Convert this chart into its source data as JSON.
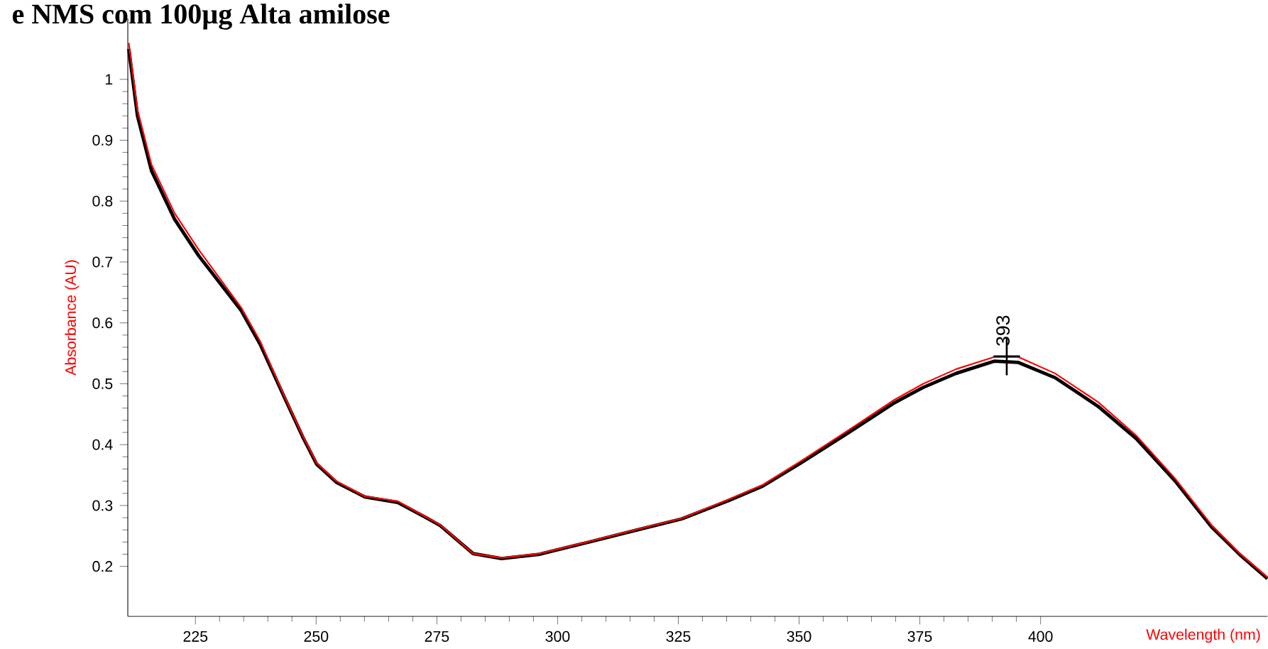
{
  "chart_data": {
    "type": "line",
    "title": "e NMS com 100µg Alta amilose",
    "xlabel": "Wavelength (nm)",
    "ylabel": "Absorbance (AU)",
    "xlim": [
      211,
      447
    ],
    "ylim": [
      0.118,
      1.1
    ],
    "xticks": [
      225,
      250,
      275,
      300,
      325,
      350,
      375,
      400
    ],
    "yticks": [
      0.2,
      0.3,
      0.4,
      0.5,
      0.6,
      0.7,
      0.8,
      0.9,
      1
    ],
    "grid": false,
    "marker": "none",
    "line_style": "solid",
    "annotations": [
      {
        "text": "393",
        "x": 393,
        "y": 0.545
      }
    ],
    "series": [
      {
        "color": "#000000",
        "x": [
          211.2,
          213,
          215.9,
          220.7,
          225.7,
          234.5,
          238.4,
          243.4,
          247.2,
          250.1,
          254.2,
          260.1,
          266.9,
          272.8,
          275.7,
          282.5,
          288.4,
          296.3,
          306,
          316,
          325.7,
          335.4,
          342.5,
          350.2,
          360.1,
          369.8,
          375.7,
          382.5,
          390.4,
          395.4,
          403,
          411.9,
          419.8,
          427.8,
          435.4,
          441.3,
          447
        ],
        "values": [
          1.05,
          0.94,
          0.85,
          0.77,
          0.71,
          0.62,
          0.565,
          0.478,
          0.413,
          0.368,
          0.338,
          0.314,
          0.305,
          0.28,
          0.267,
          0.221,
          0.213,
          0.22,
          0.239,
          0.259,
          0.278,
          0.308,
          0.332,
          0.369,
          0.419,
          0.469,
          0.494,
          0.517,
          0.537,
          0.535,
          0.51,
          0.463,
          0.41,
          0.341,
          0.265,
          0.219,
          0.18
        ]
      },
      {
        "color": "#ff0000",
        "x": [
          211.2,
          213,
          215.9,
          220.7,
          225.7,
          234.5,
          238.4,
          243.4,
          247.2,
          250.1,
          254.2,
          260.1,
          266.9,
          272.8,
          275.7,
          282.5,
          288.4,
          296.3,
          306,
          316,
          325.7,
          335.4,
          342.5,
          350.2,
          360.1,
          369.8,
          375.7,
          382.5,
          390.4,
          395.4,
          403,
          411.9,
          419.8,
          427.8,
          435.4,
          441.3,
          447
        ],
        "values": [
          1.06,
          0.95,
          0.86,
          0.78,
          0.72,
          0.625,
          0.57,
          0.48,
          0.415,
          0.37,
          0.34,
          0.315,
          0.307,
          0.281,
          0.268,
          0.221,
          0.214,
          0.221,
          0.24,
          0.26,
          0.279,
          0.31,
          0.334,
          0.372,
          0.423,
          0.474,
          0.5,
          0.524,
          0.544,
          0.544,
          0.517,
          0.47,
          0.415,
          0.345,
          0.268,
          0.221,
          0.182
        ]
      }
    ]
  }
}
